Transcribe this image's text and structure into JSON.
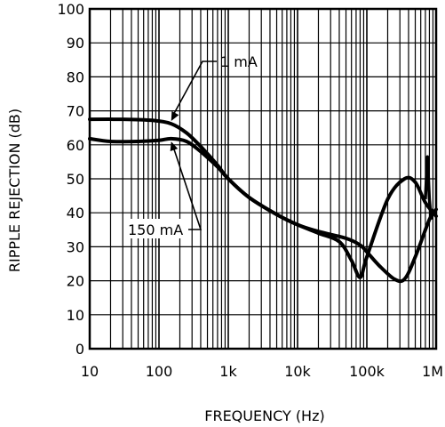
{
  "chart_data": {
    "type": "line",
    "x_scale": "log",
    "xlabel": "FREQUENCY (Hz)",
    "ylabel": "RIPPLE REJECTION (dB)",
    "xlim": [
      10,
      1000000
    ],
    "ylim": [
      0,
      100
    ],
    "grid": true,
    "x_ticks": [
      {
        "value": 10,
        "label": "10"
      },
      {
        "value": 100,
        "label": "100"
      },
      {
        "value": 1000,
        "label": "1k"
      },
      {
        "value": 10000,
        "label": "10k"
      },
      {
        "value": 100000,
        "label": "100k"
      },
      {
        "value": 1000000,
        "label": "1M"
      }
    ],
    "y_ticks": [
      0,
      10,
      20,
      30,
      40,
      50,
      60,
      70,
      80,
      90,
      100
    ],
    "series": [
      {
        "name": "1 mA",
        "x": [
          10,
          30,
          80,
          150,
          250,
          400,
          700,
          1000,
          2000,
          5000,
          10000,
          20000,
          50000,
          80000,
          100000,
          150000,
          250000,
          350000,
          500000,
          800000,
          1000000
        ],
        "y": [
          67.5,
          67.5,
          67.2,
          66.2,
          63.5,
          59.5,
          54,
          50,
          44.5,
          39.5,
          36.5,
          34.5,
          32.5,
          30.5,
          28.5,
          24.5,
          20.5,
          20.5,
          27,
          38,
          41
        ]
      },
      {
        "name": "150 mA",
        "x": [
          10,
          20,
          50,
          100,
          150,
          250,
          400,
          700,
          1000,
          2000,
          5000,
          10000,
          20000,
          40000,
          60000,
          80000,
          100000,
          200000,
          350000,
          500000,
          700000,
          1000000
        ],
        "y": [
          61.8,
          61,
          61,
          61.3,
          61.8,
          61,
          58,
          53.5,
          50,
          44.5,
          39.5,
          36.5,
          34,
          31.5,
          26,
          21,
          27,
          44,
          50,
          49,
          43,
          39
        ]
      }
    ],
    "spike": {
      "x": [
        700000,
        750000,
        800000,
        850000
      ],
      "y": [
        44,
        56.5,
        44,
        38
      ]
    },
    "annotations": [
      {
        "text": "1 mA",
        "series": "1 mA",
        "point_x": 150,
        "point_y": 66.5
      },
      {
        "text": "150 mA",
        "series": "150 mA",
        "point_x": 150,
        "point_y": 61.5
      }
    ]
  }
}
